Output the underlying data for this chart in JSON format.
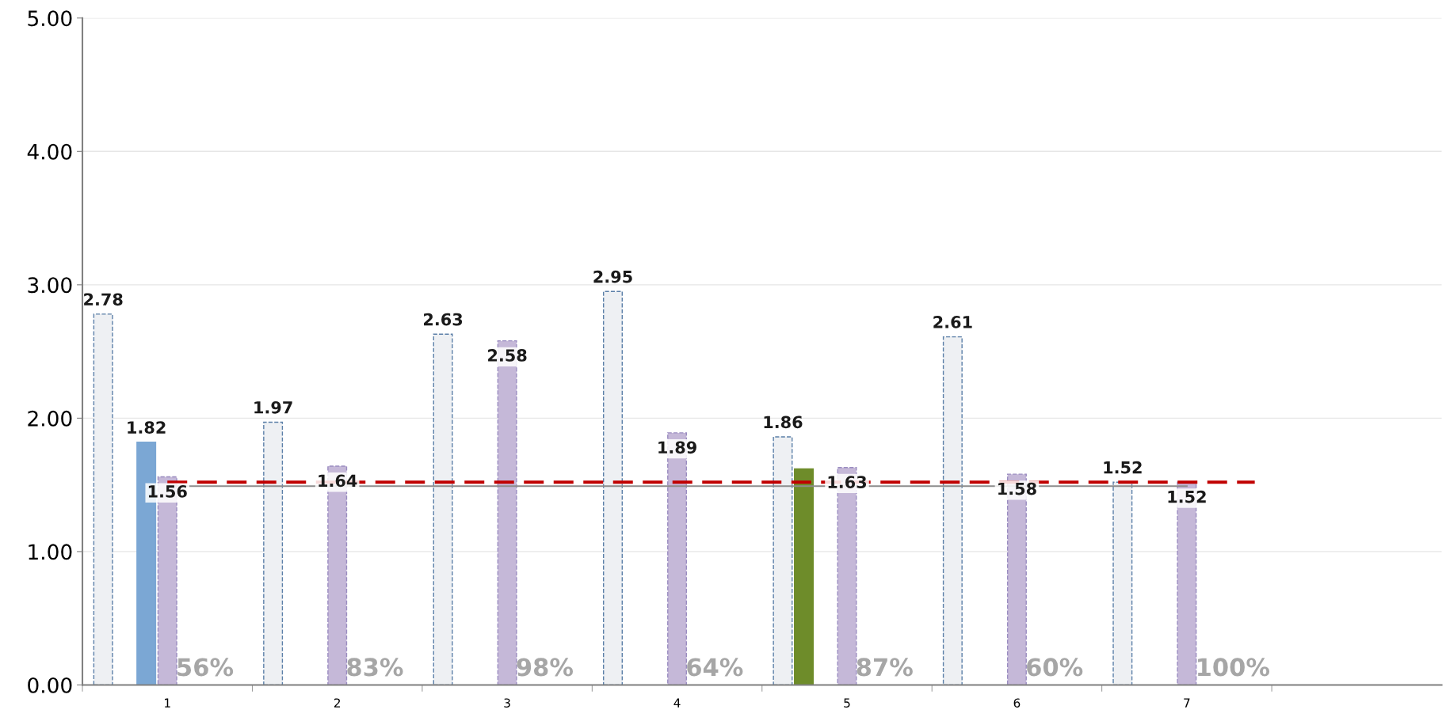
{
  "chart_data": {
    "type": "bar",
    "categories": [
      "1",
      "2",
      "3",
      "4",
      "5",
      "6",
      "7",
      null
    ],
    "series": [
      {
        "color": "#eef0f3",
        "values": [
          2.78,
          1.97,
          2.63,
          2.95,
          1.86,
          2.61,
          1.52,
          null
        ],
        "value_labels": [
          "2.78",
          "1.97",
          "2.63",
          "2.95",
          "1.86",
          "2.61",
          "1.52",
          null
        ]
      },
      {
        "color": "#6e8c2a",
        "values": [
          null,
          null,
          null,
          null,
          1.62,
          null,
          null,
          null
        ],
        "value_labels": [
          null,
          null,
          null,
          null,
          null,
          null,
          null,
          null
        ]
      },
      {
        "color": "#7ba7d4",
        "values": [
          1.82,
          null,
          null,
          null,
          null,
          null,
          null,
          null
        ],
        "value_labels": [
          "1.82",
          null,
          null,
          null,
          null,
          null,
          null,
          null
        ]
      },
      {
        "color": "#c5b8d8",
        "values": [
          1.56,
          1.64,
          2.58,
          1.89,
          1.63,
          1.58,
          1.52,
          null
        ],
        "value_labels": [
          "1.56",
          "1.64",
          "2.58",
          "1.89",
          "1.63",
          "1.58",
          "1.52",
          null
        ]
      }
    ],
    "ylim": [
      0,
      5
    ],
    "yticks": [
      {
        "value": 0,
        "label": "0.00"
      },
      {
        "value": 1,
        "label": "1.00"
      },
      {
        "value": 2,
        "label": "2.00"
      },
      {
        "value": 3,
        "label": "3.00"
      },
      {
        "value": 4,
        "label": "4.00"
      },
      {
        "value": 5,
        "label": "5.00"
      }
    ],
    "grid": "y",
    "legend": false,
    "ref_lines": [
      {
        "axis": "y",
        "value": 1.49,
        "color": "#8c8c8c",
        "line_style": "solid"
      },
      {
        "axis": "y",
        "value": 1.52,
        "color": "#c00000",
        "line_style": "dashed"
      }
    ],
    "annotations": [
      "56%",
      "83%",
      "98%",
      "64%",
      "87%",
      "60%",
      "100%"
    ]
  }
}
